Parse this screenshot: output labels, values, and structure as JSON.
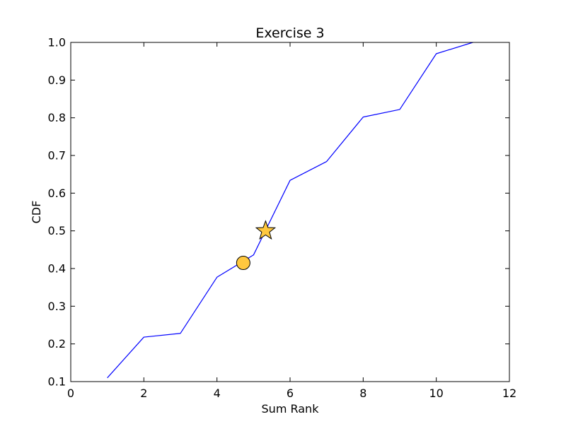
{
  "chart_data": {
    "type": "line",
    "title": "Exercise 3",
    "xlabel": "Sum Rank",
    "ylabel": "CDF",
    "xlim": [
      0,
      12
    ],
    "ylim": [
      0.1,
      1.0
    ],
    "xticks": [
      0,
      2,
      4,
      6,
      8,
      10,
      12
    ],
    "yticks": [
      0.1,
      0.2,
      0.3,
      0.4,
      0.5,
      0.6,
      0.7,
      0.8,
      0.9,
      1.0
    ],
    "xtick_labels": [
      "0",
      "2",
      "4",
      "6",
      "8",
      "10",
      "12"
    ],
    "ytick_labels": [
      "0.1",
      "0.2",
      "0.3",
      "0.4",
      "0.5",
      "0.6",
      "0.7",
      "0.8",
      "0.9",
      "1.0"
    ],
    "grid": false,
    "series": [
      {
        "x": [
          1,
          2,
          3,
          4,
          5,
          6,
          7,
          8,
          9,
          10,
          11
        ],
        "y": [
          0.11,
          0.218,
          0.228,
          0.377,
          0.436,
          0.634,
          0.684,
          0.802,
          0.822,
          0.97,
          1.0
        ],
        "color": "#0000ff"
      }
    ],
    "markers": [
      {
        "shape": "circle",
        "x": 4.72,
        "y": 0.415,
        "color": "#ffc83f"
      },
      {
        "shape": "star",
        "x": 5.33,
        "y": 0.5,
        "color": "#ffc83f"
      }
    ]
  }
}
